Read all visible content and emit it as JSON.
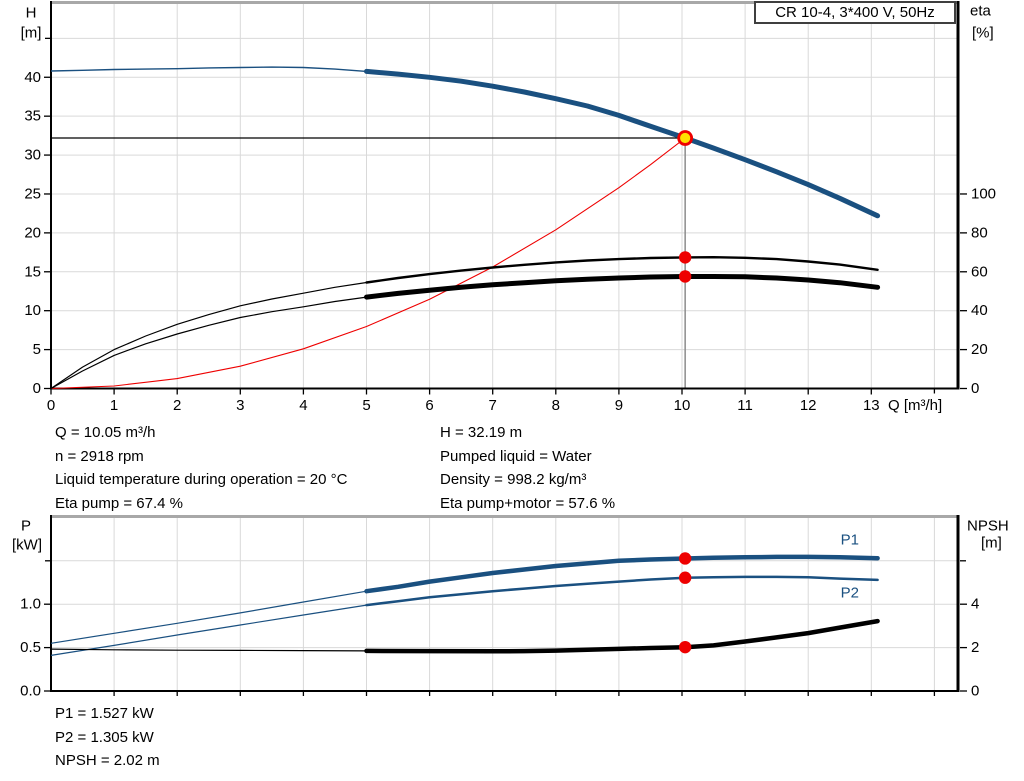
{
  "colors": {
    "blue": "#1a5080",
    "red": "#ee0000",
    "yellow": "#ffdf00",
    "black": "#000000",
    "grid": "#d9d9d9",
    "frame_gray": "#a8a8a8",
    "guide_gray": "#8c8c8c"
  },
  "header_box": {
    "label": "CR 10-4, 3*400 V, 50Hz"
  },
  "stats": {
    "top_left": [
      "Q = 10.05 m³/h",
      "n = 2918 rpm",
      "Liquid temperature during operation = 20 °C",
      "Eta pump = 67.4 %"
    ],
    "top_right": [
      "H = 32.19 m",
      "Pumped liquid = Water",
      "Density = 998.2 kg/m³",
      "Eta pump+motor = 57.6 %"
    ],
    "bottom": [
      "P1 = 1.527 kW",
      "P2 = 1.305 kW",
      "NPSH = 2.02 m"
    ]
  },
  "chart_data": [
    {
      "id": "qh",
      "type": "line",
      "title": "CR 10-4, 3*400 V, 50Hz",
      "x_axis": {
        "label": "Q [m³/h]",
        "range": [
          0,
          14.37
        ],
        "ticks": [
          [
            0,
            "0"
          ],
          [
            1,
            "1"
          ],
          [
            2,
            "2"
          ],
          [
            3,
            "3"
          ],
          [
            4,
            "4"
          ],
          [
            5,
            "5"
          ],
          [
            6,
            "6"
          ],
          [
            7,
            "7"
          ],
          [
            8,
            "8"
          ],
          [
            9,
            "9"
          ],
          [
            10,
            "10"
          ],
          [
            11,
            "11"
          ],
          [
            12,
            "12"
          ],
          [
            13,
            "13"
          ]
        ],
        "minor_ticks": [
          14
        ]
      },
      "y_left": {
        "title": [
          "H",
          "[m]"
        ],
        "range": [
          0,
          49.5
        ],
        "ticks": [
          [
            0,
            "0"
          ],
          [
            5,
            "5"
          ],
          [
            10,
            "10"
          ],
          [
            15,
            "15"
          ],
          [
            20,
            "20"
          ],
          [
            25,
            "25"
          ],
          [
            30,
            "30"
          ],
          [
            35,
            "35"
          ],
          [
            40,
            "40"
          ]
        ],
        "minor_ticks": [
          45
        ]
      },
      "y_right": {
        "title": [
          "eta",
          "[%]"
        ],
        "per_left_unit": 4,
        "ticks": [
          [
            0,
            "0"
          ],
          [
            20,
            "20"
          ],
          [
            40,
            "40"
          ],
          [
            60,
            "60"
          ],
          [
            80,
            "80"
          ],
          [
            100,
            "100"
          ]
        ],
        "minor_ticks": []
      },
      "series": [
        {
          "name": "qh-curve",
          "color": "blue",
          "axis": "left",
          "w1": 1.4,
          "w2": 5,
          "split": 5,
          "points": [
            [
              0,
              40.8
            ],
            [
              0.5,
              40.9
            ],
            [
              1,
              41.0
            ],
            [
              1.5,
              41.05
            ],
            [
              2,
              41.1
            ],
            [
              2.5,
              41.2
            ],
            [
              3,
              41.25
            ],
            [
              3.5,
              41.3
            ],
            [
              4,
              41.25
            ],
            [
              4.5,
              41.05
            ],
            [
              5,
              40.75
            ],
            [
              5.5,
              40.4
            ],
            [
              6,
              40.0
            ],
            [
              6.5,
              39.5
            ],
            [
              7,
              38.85
            ],
            [
              7.5,
              38.1
            ],
            [
              8,
              37.25
            ],
            [
              8.5,
              36.3
            ],
            [
              9,
              35.1
            ],
            [
              9.5,
              33.7
            ],
            [
              10.05,
              32.19
            ],
            [
              10.5,
              30.9
            ],
            [
              11,
              29.4
            ],
            [
              11.5,
              27.85
            ],
            [
              12,
              26.2
            ],
            [
              12.5,
              24.45
            ],
            [
              13.1,
              22.2
            ]
          ]
        },
        {
          "name": "system-curve",
          "color": "red",
          "axis": "left",
          "w1": 1.1,
          "w2": 1.1,
          "split": 99,
          "points": [
            [
              0,
              0
            ],
            [
              1,
              0.32
            ],
            [
              2,
              1.27
            ],
            [
              3,
              2.87
            ],
            [
              4,
              5.1
            ],
            [
              5,
              7.97
            ],
            [
              6,
              11.47
            ],
            [
              7,
              15.61
            ],
            [
              8,
              20.39
            ],
            [
              9,
              25.81
            ],
            [
              9.5,
              28.76
            ],
            [
              10.05,
              32.19
            ]
          ]
        },
        {
          "name": "eta-pump-curve",
          "color": "black",
          "axis": "right",
          "w1": 1.2,
          "w2": 2.4,
          "split": 5,
          "points": [
            [
              0,
              0
            ],
            [
              0.5,
              11
            ],
            [
              1,
              20
            ],
            [
              1.5,
              27
            ],
            [
              2,
              33
            ],
            [
              2.5,
              38
            ],
            [
              3,
              42.5
            ],
            [
              3.5,
              46
            ],
            [
              4,
              49
            ],
            [
              4.5,
              52
            ],
            [
              5,
              54.5
            ],
            [
              5.5,
              56.8
            ],
            [
              6,
              58.8
            ],
            [
              6.5,
              60.6
            ],
            [
              7,
              62.2
            ],
            [
              7.5,
              63.6
            ],
            [
              8,
              64.8
            ],
            [
              8.5,
              65.8
            ],
            [
              9,
              66.5
            ],
            [
              9.5,
              67.1
            ],
            [
              10.05,
              67.4
            ],
            [
              10.5,
              67.5
            ],
            [
              11,
              67.2
            ],
            [
              11.5,
              66.5
            ],
            [
              12,
              65.3
            ],
            [
              12.5,
              63.7
            ],
            [
              13.1,
              61
            ]
          ]
        },
        {
          "name": "eta-pump-motor-curve",
          "color": "black",
          "axis": "right",
          "w1": 1.2,
          "w2": 5,
          "split": 5,
          "points": [
            [
              0,
              0
            ],
            [
              0.5,
              9
            ],
            [
              1,
              17
            ],
            [
              1.5,
              23
            ],
            [
              2,
              28
            ],
            [
              2.5,
              32.5
            ],
            [
              3,
              36.5
            ],
            [
              3.5,
              39.5
            ],
            [
              4,
              42
            ],
            [
              4.5,
              44.7
            ],
            [
              5,
              47
            ],
            [
              5.5,
              48.9
            ],
            [
              6,
              50.5
            ],
            [
              6.5,
              52
            ],
            [
              7,
              53.3
            ],
            [
              7.5,
              54.4
            ],
            [
              8,
              55.4
            ],
            [
              8.5,
              56.2
            ],
            [
              9,
              56.8
            ],
            [
              9.5,
              57.3
            ],
            [
              10.05,
              57.6
            ],
            [
              10.5,
              57.6
            ],
            [
              11,
              57.4
            ],
            [
              11.5,
              56.8
            ],
            [
              12,
              55.8
            ],
            [
              12.5,
              54.4
            ],
            [
              13.1,
              52
            ]
          ]
        }
      ],
      "guides": {
        "h": {
          "y": 32.19,
          "x_to": 10.05
        },
        "v": {
          "x": 10.05,
          "y_to": 32.19
        }
      },
      "markers": [
        {
          "kind": "duty",
          "axis": "left",
          "x": 10.05,
          "y": 32.19
        },
        {
          "kind": "dot",
          "axis": "right",
          "x": 10.05,
          "y": 67.4
        },
        {
          "kind": "dot",
          "axis": "right",
          "x": 10.05,
          "y": 57.6
        }
      ],
      "labels": []
    },
    {
      "id": "power-npsh",
      "type": "line",
      "title": "",
      "x_axis": {
        "label": "",
        "range": [
          0,
          14.37
        ],
        "ticks": [],
        "minor_ticks": [
          1,
          2,
          3,
          4,
          5,
          6,
          7,
          8,
          9,
          10,
          11,
          12,
          13,
          14
        ]
      },
      "y_left": {
        "title": [
          "P",
          "[kW]"
        ],
        "range": [
          0,
          2.0
        ],
        "ticks": [
          [
            0,
            "0.0"
          ],
          [
            0.5,
            "0.5"
          ],
          [
            1,
            "1.0"
          ]
        ],
        "minor_ticks": [
          1.5
        ]
      },
      "y_right": {
        "title": [
          "NPSH",
          "[m]"
        ],
        "per_left_unit": 4,
        "ticks": [
          [
            0,
            "0"
          ],
          [
            2,
            "2"
          ],
          [
            4,
            "4"
          ]
        ],
        "minor_ticks": [
          6
        ]
      },
      "series": [
        {
          "name": "p1-curve",
          "color": "blue",
          "axis": "left",
          "w1": 1.2,
          "w2": 4.5,
          "split": 5,
          "points": [
            [
              0,
              0.55
            ],
            [
              1,
              0.665
            ],
            [
              2,
              0.78
            ],
            [
              3,
              0.9
            ],
            [
              4,
              1.025
            ],
            [
              5,
              1.15
            ],
            [
              5.5,
              1.2
            ],
            [
              6,
              1.26
            ],
            [
              6.5,
              1.31
            ],
            [
              7,
              1.36
            ],
            [
              7.5,
              1.4
            ],
            [
              8,
              1.44
            ],
            [
              8.5,
              1.47
            ],
            [
              9,
              1.5
            ],
            [
              9.5,
              1.515
            ],
            [
              10.05,
              1.527
            ],
            [
              10.5,
              1.535
            ],
            [
              11,
              1.54
            ],
            [
              11.5,
              1.545
            ],
            [
              12,
              1.545
            ],
            [
              12.5,
              1.54
            ],
            [
              13.1,
              1.53
            ]
          ]
        },
        {
          "name": "p2-curve",
          "color": "blue",
          "axis": "left",
          "w1": 1.2,
          "w2": 2.5,
          "split": 5,
          "points": [
            [
              0,
              0.41
            ],
            [
              1,
              0.525
            ],
            [
              2,
              0.645
            ],
            [
              3,
              0.76
            ],
            [
              4,
              0.875
            ],
            [
              5,
              0.99
            ],
            [
              5.5,
              1.035
            ],
            [
              6,
              1.08
            ],
            [
              6.5,
              1.115
            ],
            [
              7,
              1.15
            ],
            [
              7.5,
              1.18
            ],
            [
              8,
              1.21
            ],
            [
              8.5,
              1.235
            ],
            [
              9,
              1.26
            ],
            [
              9.5,
              1.285
            ],
            [
              10.05,
              1.305
            ],
            [
              10.5,
              1.31
            ],
            [
              11,
              1.315
            ],
            [
              11.5,
              1.315
            ],
            [
              12,
              1.31
            ],
            [
              12.5,
              1.295
            ],
            [
              13.1,
              1.28
            ]
          ]
        },
        {
          "name": "npsh-curve",
          "color": "black",
          "axis": "right",
          "w1": 1.2,
          "w2": 4.5,
          "split": 5,
          "points": [
            [
              0,
              1.93
            ],
            [
              1,
              1.9
            ],
            [
              2,
              1.88
            ],
            [
              3,
              1.87
            ],
            [
              4,
              1.86
            ],
            [
              5,
              1.85
            ],
            [
              6,
              1.84
            ],
            [
              7,
              1.83
            ],
            [
              7.5,
              1.84
            ],
            [
              8,
              1.86
            ],
            [
              8.5,
              1.9
            ],
            [
              9,
              1.94
            ],
            [
              9.5,
              1.98
            ],
            [
              10.05,
              2.02
            ],
            [
              10.5,
              2.1
            ],
            [
              11,
              2.28
            ],
            [
              11.5,
              2.47
            ],
            [
              12,
              2.67
            ],
            [
              12.5,
              2.92
            ],
            [
              13.1,
              3.22
            ]
          ]
        }
      ],
      "guides": null,
      "markers": [
        {
          "kind": "dot",
          "axis": "left",
          "x": 10.05,
          "y": 1.527
        },
        {
          "kind": "dot",
          "axis": "left",
          "x": 10.05,
          "y": 1.305
        },
        {
          "kind": "dot",
          "axis": "right",
          "x": 10.05,
          "y": 2.02
        }
      ],
      "labels": [
        {
          "text": "P1",
          "axis": "left",
          "x": 12.66,
          "y": 1.74
        },
        {
          "text": "P2",
          "axis": "left",
          "x": 12.66,
          "y": 1.13
        }
      ]
    }
  ]
}
